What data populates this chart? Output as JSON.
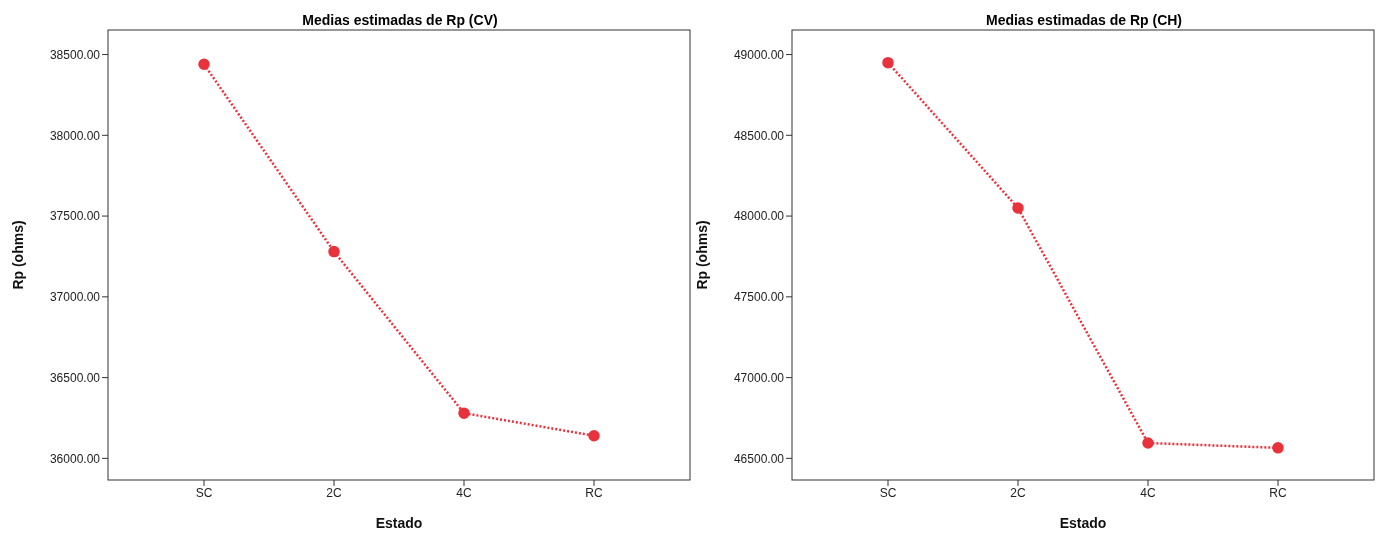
{
  "chart_data": [
    {
      "type": "line",
      "title": "Medias estimadas de Rp (CV)",
      "xlabel": "Estado",
      "ylabel": "Rp (ohms)",
      "categories": [
        "SC",
        "2C",
        "4C",
        "RC"
      ],
      "series": [
        {
          "color": "#e8323c",
          "values": [
            38440,
            37280,
            36280,
            36140
          ]
        }
      ],
      "ylim": [
        35866,
        38652
      ],
      "yticks": [
        {
          "value": 36000,
          "label": "36000.00"
        },
        {
          "value": 36500,
          "label": "36500.00"
        },
        {
          "value": 37000,
          "label": "37000.00"
        },
        {
          "value": 37500,
          "label": "37500.00"
        },
        {
          "value": 38000,
          "label": "38000.00"
        },
        {
          "value": 38500,
          "label": "38500.00"
        }
      ],
      "marker": "circle",
      "line_style": "dotted",
      "grid": false,
      "legend": false
    },
    {
      "type": "line",
      "title": "Medias estimadas de Rp (CH)",
      "xlabel": "Estado",
      "ylabel": "Rp (ohms)",
      "categories": [
        "SC",
        "2C",
        "4C",
        "RC"
      ],
      "series": [
        {
          "color": "#e8323c",
          "values": [
            48950,
            48050,
            46595,
            46565
          ]
        }
      ],
      "ylim": [
        46366,
        49152
      ],
      "yticks": [
        {
          "value": 46500,
          "label": "46500.00"
        },
        {
          "value": 47000,
          "label": "47000.00"
        },
        {
          "value": 47500,
          "label": "47500.00"
        },
        {
          "value": 48000,
          "label": "48000.00"
        },
        {
          "value": 48500,
          "label": "48500.00"
        },
        {
          "value": 49000,
          "label": "49000.00"
        }
      ],
      "marker": "circle",
      "line_style": "dotted",
      "grid": false,
      "legend": false
    }
  ]
}
